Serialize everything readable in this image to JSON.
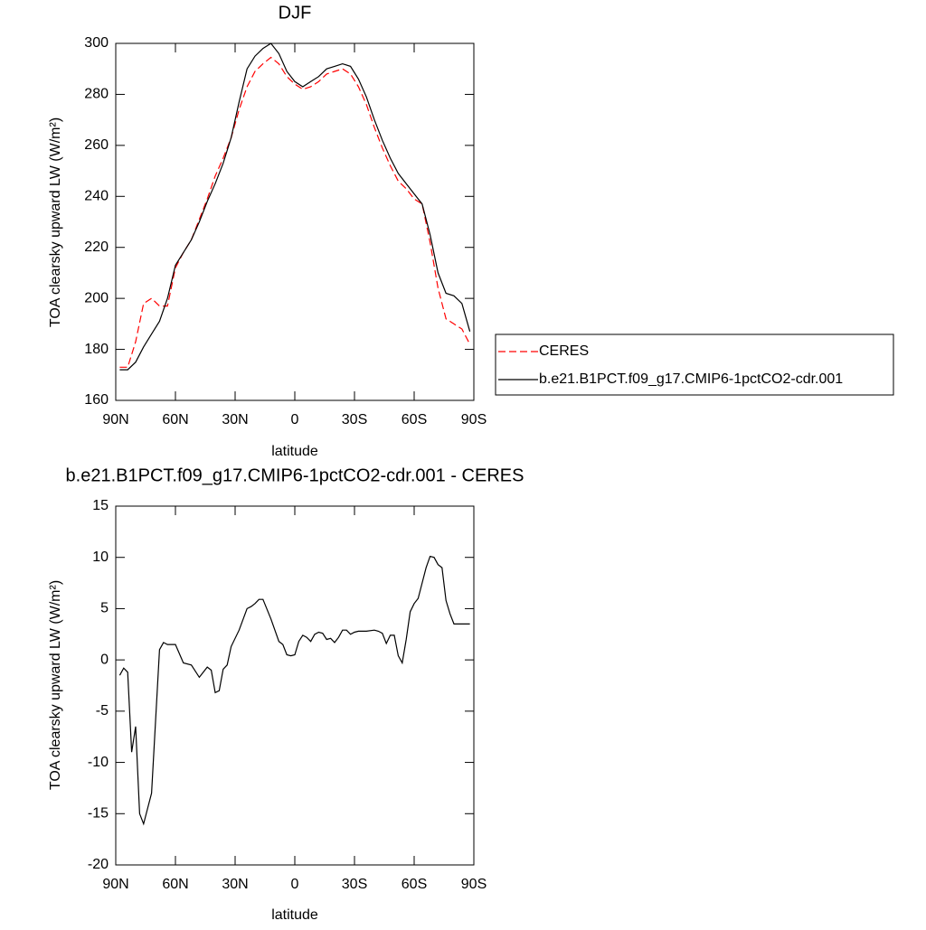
{
  "chart_data": [
    {
      "type": "line",
      "title": "DJF",
      "xlabel": "latitude",
      "ylabel": "TOA clearsky upward LW (W/m²)",
      "xlim": [
        90,
        -90
      ],
      "ylim": [
        160,
        300
      ],
      "xticks": [
        {
          "value": 90,
          "label": "90N"
        },
        {
          "value": 60,
          "label": "60N"
        },
        {
          "value": 30,
          "label": "30N"
        },
        0,
        {
          "value": -30,
          "label": "30S"
        },
        {
          "value": -60,
          "label": "60S"
        },
        {
          "value": -90,
          "label": "90S"
        }
      ],
      "yticks": [
        160,
        180,
        200,
        220,
        240,
        260,
        280,
        300
      ],
      "legend": "right",
      "x": [
        88,
        84,
        80,
        76,
        72,
        68,
        64,
        60,
        56,
        52,
        48,
        44,
        40,
        36,
        32,
        28,
        24,
        20,
        16,
        12,
        8,
        4,
        0,
        -4,
        -8,
        -12,
        -16,
        -20,
        -24,
        -28,
        -32,
        -36,
        -40,
        -44,
        -48,
        -52,
        -56,
        -60,
        -64,
        -68,
        -72,
        -76,
        -80,
        -84,
        -88
      ],
      "series": [
        {
          "name": "CERES",
          "color": "#ff0000",
          "line_style": "dashed",
          "values": [
            173,
            173,
            183,
            198,
            200,
            197,
            197,
            212,
            218,
            223,
            231,
            239,
            248,
            255,
            263,
            274,
            283,
            289,
            292,
            294.5,
            292,
            287,
            284,
            282,
            283,
            285,
            288,
            289,
            290,
            288,
            283,
            276,
            267,
            259,
            252,
            246,
            243,
            239,
            237,
            222,
            204,
            192,
            190,
            188,
            182
          ]
        },
        {
          "name": "b.e21.B1PCT.f09_g17.CMIP6-1pctCO2-cdr.001",
          "color": "#000000",
          "line_style": "solid",
          "values": [
            172,
            172,
            175,
            181,
            186,
            191,
            200,
            213,
            218,
            223,
            230,
            238,
            245,
            253,
            263,
            277,
            290,
            295,
            298,
            300,
            296,
            289,
            285,
            283,
            285,
            287,
            290,
            291,
            292,
            291,
            286,
            279,
            270,
            262,
            255,
            249,
            245,
            241,
            237,
            225,
            210,
            202,
            201,
            198,
            187
          ]
        }
      ]
    },
    {
      "type": "line",
      "title": "b.e21.B1PCT.f09_g17.CMIP6-1pctCO2-cdr.001 - CERES",
      "xlabel": "latitude",
      "ylabel": "TOA clearsky upward LW (W/m²)",
      "xlim": [
        90,
        -90
      ],
      "ylim": [
        -20,
        15
      ],
      "xticks": [
        {
          "value": 90,
          "label": "90N"
        },
        {
          "value": 60,
          "label": "60N"
        },
        {
          "value": 30,
          "label": "30N"
        },
        0,
        {
          "value": -30,
          "label": "30S"
        },
        {
          "value": -60,
          "label": "60S"
        },
        {
          "value": -90,
          "label": "90S"
        }
      ],
      "yticks": [
        -20,
        -15,
        -10,
        -5,
        0,
        5,
        10,
        15
      ],
      "x": [
        88,
        86,
        84,
        82,
        80,
        78,
        76,
        72,
        68,
        66,
        64,
        62,
        60,
        56,
        52,
        48,
        44,
        42,
        40,
        38,
        36,
        34,
        32,
        28,
        24,
        22,
        20,
        18,
        16,
        12,
        8,
        6,
        4,
        2,
        0,
        -2,
        -4,
        -6,
        -8,
        -10,
        -12,
        -14,
        -16,
        -18,
        -20,
        -22,
        -24,
        -26,
        -28,
        -30,
        -32,
        -36,
        -40,
        -42,
        -44,
        -46,
        -48,
        -50,
        -52,
        -54,
        -56,
        -58,
        -60,
        -62,
        -64,
        -66,
        -68,
        -70,
        -72,
        -74,
        -76,
        -78,
        -80,
        -82,
        -84,
        -86,
        -88
      ],
      "series": [
        {
          "color": "#000000",
          "values": [
            -1.5,
            -0.8,
            -1.2,
            -9,
            -6.5,
            -15,
            -16,
            -13,
            1,
            1.7,
            1.5,
            1.5,
            1.5,
            -0.3,
            -0.5,
            -1.7,
            -0.7,
            -1.0,
            -3.2,
            -3.0,
            -0.9,
            -0.5,
            1.3,
            2.9,
            5,
            5.2,
            5.5,
            5.9,
            5.9,
            4,
            1.8,
            1.5,
            0.5,
            0.4,
            0.5,
            1.8,
            2.4,
            2.2,
            1.8,
            2.5,
            2.7,
            2.6,
            2.0,
            2.1,
            1.7,
            2.2,
            2.9,
            2.9,
            2.5,
            2.7,
            2.8,
            2.8,
            2.9,
            2.8,
            2.6,
            1.6,
            2.4,
            2.4,
            0.4,
            -0.3,
            2.0,
            4.7,
            5.5,
            6,
            7.5,
            9,
            10.1,
            10.0,
            9.3,
            9.0,
            5.8,
            4.5,
            3.5,
            3.5,
            3.5,
            3.5,
            3.5
          ]
        }
      ]
    }
  ]
}
